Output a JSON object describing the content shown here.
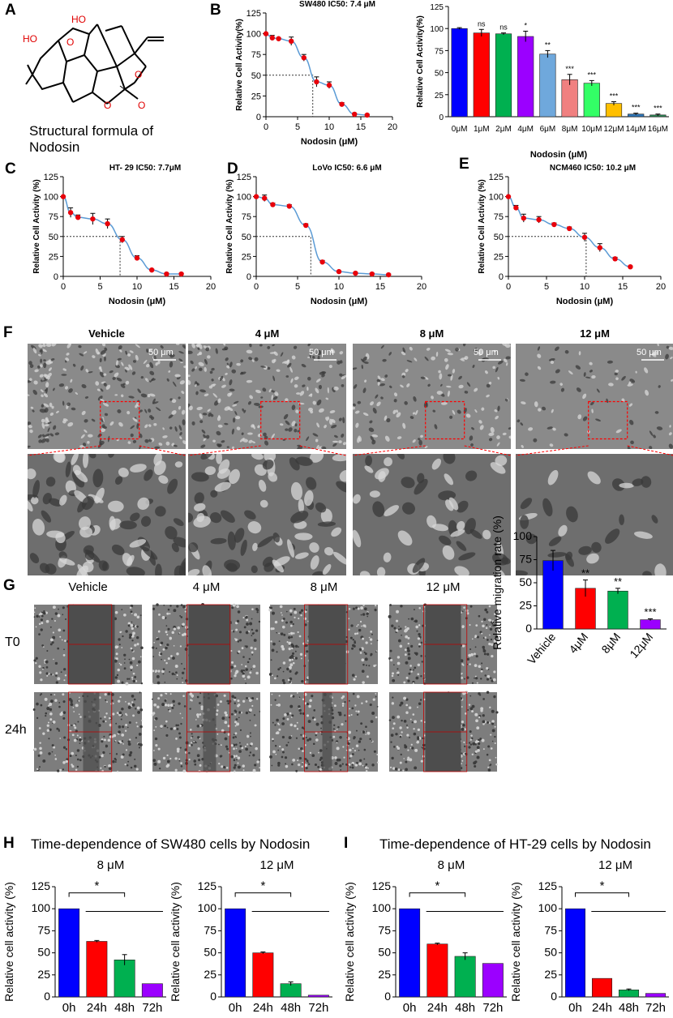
{
  "panel_labels": [
    "A",
    "B",
    "C",
    "D",
    "E",
    "F",
    "G",
    "H",
    "I"
  ],
  "structure": {
    "caption_line1": "Structural formula of",
    "caption_line2": "Nodosin",
    "atom_labels": [
      "HO",
      "HO",
      "O",
      "O",
      "O",
      "O"
    ]
  },
  "colors": {
    "blue": "#0000ff",
    "red": "#ff0000",
    "green": "#00b050",
    "purple": "#9b00ff",
    "sky": "#6fa8dc",
    "salmon": "#f08080",
    "lightgreen": "#33ff66",
    "gold": "#ffbf00",
    "teal": "#2e75b6",
    "darkgreen": "#2e8b57",
    "curve": "#5b9bd5",
    "point": "#e8000b"
  },
  "panel_F": {
    "titles": [
      "Vehicle",
      "4 μM",
      "8 μM",
      "12 μM"
    ],
    "scale_bar": "50 μm"
  },
  "panel_G": {
    "titles": [
      "Vehicle",
      "4 μM",
      "8 μM",
      "12 μM"
    ],
    "rows": [
      "T0",
      "24h"
    ]
  },
  "panel_H": {
    "title": "Time-dependence of SW480 cells by Nodosin"
  },
  "panel_I": {
    "title": "Time-dependence of HT-29 cells by Nodosin"
  },
  "chart_data": [
    {
      "id": "B-curve",
      "type": "line",
      "title": "SW480 IC50: 7.4 μM",
      "xlabel": "Nodosin (μM)",
      "ylabel": "Relative Cell Activity(%)",
      "xlim": [
        0,
        20
      ],
      "ylim": [
        0,
        125
      ],
      "xticks": [
        0,
        5,
        10,
        15,
        20
      ],
      "yticks": [
        0,
        25,
        50,
        75,
        100,
        125
      ],
      "ic50": 7.4,
      "x": [
        0,
        1,
        2,
        4,
        6,
        8,
        10,
        12,
        14,
        16
      ],
      "y": [
        100,
        95,
        94,
        91,
        71,
        42,
        38,
        15,
        3,
        2
      ],
      "err": [
        0,
        3,
        1,
        5,
        4,
        6,
        4,
        2,
        1,
        1
      ]
    },
    {
      "id": "B-bar",
      "type": "bar",
      "title": "",
      "xlabel": "Nodosin (μM)",
      "ylabel": "Relative Cell Activity(%)",
      "ylim": [
        0,
        125
      ],
      "yticks": [
        0,
        25,
        50,
        75,
        100,
        125
      ],
      "categories": [
        "0μM",
        "1μM",
        "2μM",
        "4μM",
        "6μM",
        "8μM",
        "10μM",
        "12μM",
        "14μM",
        "16μM"
      ],
      "values": [
        100,
        95,
        94,
        91,
        71,
        42,
        38,
        15,
        3,
        2
      ],
      "err": [
        1,
        4,
        1,
        6,
        4,
        6,
        3,
        2,
        1,
        1
      ],
      "significance": [
        "",
        "ns",
        "ns",
        "*",
        "**",
        "***",
        "***",
        "***",
        "***",
        "***"
      ],
      "bar_colors": [
        "#0000ff",
        "#ff0000",
        "#00b050",
        "#9b00ff",
        "#6fa8dc",
        "#f08080",
        "#33ff66",
        "#ffbf00",
        "#2e75b6",
        "#2e8b57"
      ]
    },
    {
      "id": "C",
      "type": "line",
      "title": "HT- 29 IC50: 7.7μM",
      "xlabel": "Nodosin (μM)",
      "ylabel": "Relative Cell Activity (%)",
      "xlim": [
        0,
        20
      ],
      "ylim": [
        0,
        125
      ],
      "xticks": [
        0,
        5,
        10,
        15,
        20
      ],
      "yticks": [
        0,
        25,
        50,
        75,
        100,
        125
      ],
      "ic50": 7.7,
      "x": [
        0,
        1,
        2,
        4,
        6,
        8,
        10,
        12,
        14,
        16
      ],
      "y": [
        100,
        80,
        74,
        72,
        66,
        46,
        23,
        8,
        3,
        3
      ],
      "err": [
        0,
        6,
        3,
        7,
        6,
        4,
        3,
        1,
        1,
        1
      ]
    },
    {
      "id": "D",
      "type": "line",
      "title": "LoVo  IC50: 6.6 μM",
      "xlabel": "Nodosin (μM)",
      "ylabel": "Relative Cell Activity (%)",
      "xlim": [
        0,
        20
      ],
      "ylim": [
        0,
        125
      ],
      "xticks": [
        0,
        5,
        10,
        15,
        20
      ],
      "yticks": [
        0,
        25,
        50,
        75,
        100,
        125
      ],
      "ic50": 6.6,
      "x": [
        0,
        1,
        2,
        4,
        6,
        8,
        10,
        12,
        14,
        16
      ],
      "y": [
        100,
        98,
        90,
        88,
        64,
        18,
        6,
        4,
        3,
        2
      ],
      "err": [
        0,
        4,
        2,
        2,
        2,
        2,
        1,
        1,
        1,
        1
      ]
    },
    {
      "id": "E",
      "type": "line",
      "title": "NCM460  IC50: 10.2 μM",
      "xlabel": "Nodosin (μM)",
      "ylabel": "Relative Cell Activity (%)",
      "xlim": [
        0,
        20
      ],
      "ylim": [
        0,
        125
      ],
      "xticks": [
        0,
        5,
        10,
        15,
        20
      ],
      "yticks": [
        0,
        25,
        50,
        75,
        100,
        125
      ],
      "ic50": 10.2,
      "x": [
        0,
        1,
        2,
        4,
        6,
        8,
        10,
        12,
        14,
        16
      ],
      "y": [
        100,
        86,
        73,
        71,
        65,
        60,
        49,
        36,
        22,
        12
      ],
      "err": [
        0,
        3,
        5,
        4,
        2,
        2,
        5,
        5,
        2,
        1
      ]
    },
    {
      "id": "G",
      "type": "bar",
      "title": "",
      "xlabel": "",
      "ylabel": "Relative migration rate (%)",
      "ylim": [
        0,
        100
      ],
      "yticks": [
        0,
        25,
        50,
        75,
        100
      ],
      "categories": [
        "Vehicle",
        "4μM",
        "8μM",
        "12μM"
      ],
      "values": [
        74,
        44,
        41,
        10
      ],
      "err": [
        11,
        9,
        3,
        1
      ],
      "significance": [
        "",
        "**",
        "**",
        "***"
      ],
      "bar_colors": [
        "#0000ff",
        "#ff0000",
        "#00b050",
        "#9b00ff"
      ]
    },
    {
      "id": "H1",
      "type": "bar",
      "title": "8 μM",
      "xlabel": "",
      "ylabel": "Relative cell activity (%)",
      "ylim": [
        0,
        125
      ],
      "yticks": [
        0,
        25,
        50,
        75,
        100,
        125
      ],
      "categories": [
        "0h",
        "24h",
        "48h",
        "72h"
      ],
      "values": [
        100,
        63,
        42,
        15
      ],
      "err": [
        0,
        1,
        6,
        0
      ],
      "significance": [
        "*"
      ],
      "bar_colors": [
        "#0000ff",
        "#ff0000",
        "#00b050",
        "#9b00ff"
      ]
    },
    {
      "id": "H2",
      "type": "bar",
      "title": "12 μM",
      "xlabel": "",
      "ylabel": "Relative cell activity (%)",
      "ylim": [
        0,
        125
      ],
      "yticks": [
        0,
        25,
        50,
        75,
        100,
        125
      ],
      "categories": [
        "0h",
        "24h",
        "48h",
        "72h"
      ],
      "values": [
        100,
        50,
        15,
        2
      ],
      "err": [
        0,
        1,
        2,
        0
      ],
      "significance": [
        "*"
      ],
      "bar_colors": [
        "#0000ff",
        "#ff0000",
        "#00b050",
        "#9b00ff"
      ]
    },
    {
      "id": "I1",
      "type": "bar",
      "title": "8 μM",
      "xlabel": "",
      "ylabel": "Relative cell activity (%)",
      "ylim": [
        0,
        125
      ],
      "yticks": [
        0,
        25,
        50,
        75,
        100,
        125
      ],
      "categories": [
        "0h",
        "24h",
        "48h",
        "72h"
      ],
      "values": [
        100,
        60,
        46,
        38
      ],
      "err": [
        0,
        1,
        4,
        0
      ],
      "significance": [
        "*"
      ],
      "bar_colors": [
        "#0000ff",
        "#ff0000",
        "#00b050",
        "#9b00ff"
      ]
    },
    {
      "id": "I2",
      "type": "bar",
      "title": "12 μM",
      "xlabel": "",
      "ylabel": "Relative cell activity (%)",
      "ylim": [
        0,
        125
      ],
      "yticks": [
        0,
        25,
        50,
        75,
        100,
        125
      ],
      "categories": [
        "0h",
        "24h",
        "48h",
        "72h"
      ],
      "values": [
        100,
        21,
        8,
        4
      ],
      "err": [
        0,
        0,
        1,
        0
      ],
      "significance": [
        "*"
      ],
      "bar_colors": [
        "#0000ff",
        "#ff0000",
        "#00b050",
        "#9b00ff"
      ]
    }
  ]
}
